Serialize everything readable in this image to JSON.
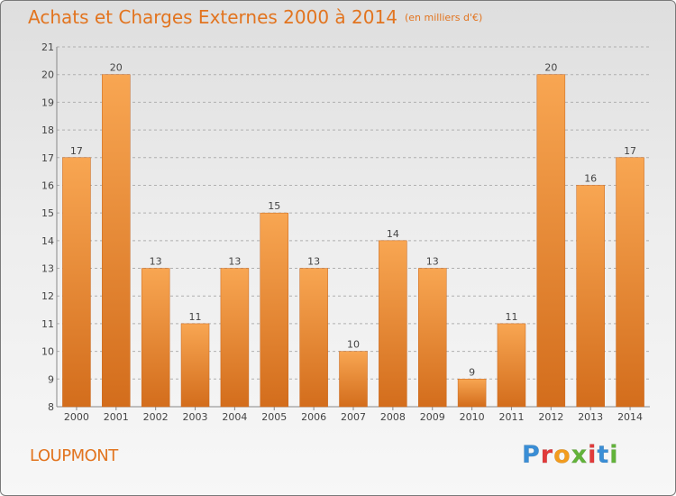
{
  "header": {
    "title": "Achats et Charges Externes 2000 à 2014",
    "subtitle": "(en milliers d'€)"
  },
  "footer": {
    "commune": "LOUPMONT",
    "logo_text": "Proxiti",
    "logo_colors": [
      "#3a8ed6",
      "#e23b3b",
      "#f39c1e",
      "#62b33a",
      "#e23b3b",
      "#3a8ed6",
      "#62b33a"
    ]
  },
  "colors": {
    "bar_light": "#f8a652",
    "bar_dark": "#d36d1c",
    "title": "#e2741f",
    "grid": "#b0b0b0"
  },
  "chart_data": {
    "type": "bar",
    "title": "Achats et Charges Externes 2000 à 2014",
    "subtitle": "(en milliers d'€)",
    "categories": [
      "2000",
      "2001",
      "2002",
      "2003",
      "2004",
      "2005",
      "2006",
      "2007",
      "2008",
      "2009",
      "2010",
      "2011",
      "2012",
      "2013",
      "2014"
    ],
    "values": [
      17,
      20,
      13,
      11,
      13,
      15,
      13,
      10,
      14,
      13,
      9,
      11,
      20,
      16,
      17
    ],
    "ylim": [
      8,
      21
    ],
    "yticks": [
      8,
      9,
      10,
      11,
      12,
      13,
      14,
      15,
      16,
      17,
      18,
      19,
      20,
      21
    ],
    "grid": true,
    "data_labels": true
  }
}
